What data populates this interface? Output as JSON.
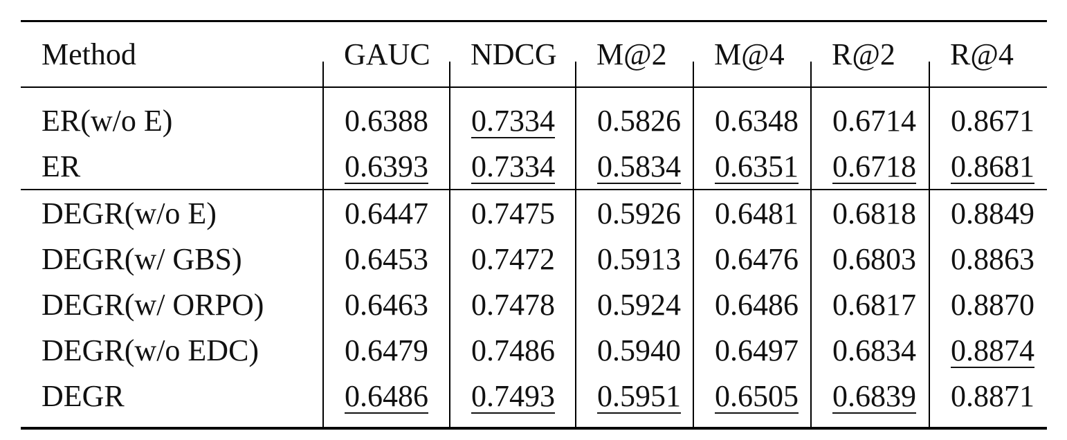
{
  "table": {
    "header": [
      "Method",
      "GAUC",
      "NDCG",
      "M@2",
      "M@4",
      "R@2",
      "R@4"
    ],
    "rows": [
      [
        "ER(w/o E)",
        "0.6388",
        "0.7334",
        "0.5826",
        "0.6348",
        "0.6714",
        "0.8671"
      ],
      [
        "ER",
        "0.6393",
        "0.7334",
        "0.5834",
        "0.6351",
        "0.6718",
        "0.8681"
      ],
      [
        "DEGR(w/o E)",
        "0.6447",
        "0.7475",
        "0.5926",
        "0.6481",
        "0.6818",
        "0.8849"
      ],
      [
        "DEGR(w/ GBS)",
        "0.6453",
        "0.7472",
        "0.5913",
        "0.6476",
        "0.6803",
        "0.8863"
      ],
      [
        "DEGR(w/ ORPO)",
        "0.6463",
        "0.7478",
        "0.5924",
        "0.6486",
        "0.6817",
        "0.8870"
      ],
      [
        "DEGR(w/o EDC)",
        "0.6479",
        "0.7486",
        "0.5940",
        "0.6497",
        "0.6834",
        "0.8874"
      ],
      [
        "DEGR",
        "0.6486",
        "0.7493",
        "0.5951",
        "0.6505",
        "0.6839",
        "0.8871"
      ]
    ]
  }
}
